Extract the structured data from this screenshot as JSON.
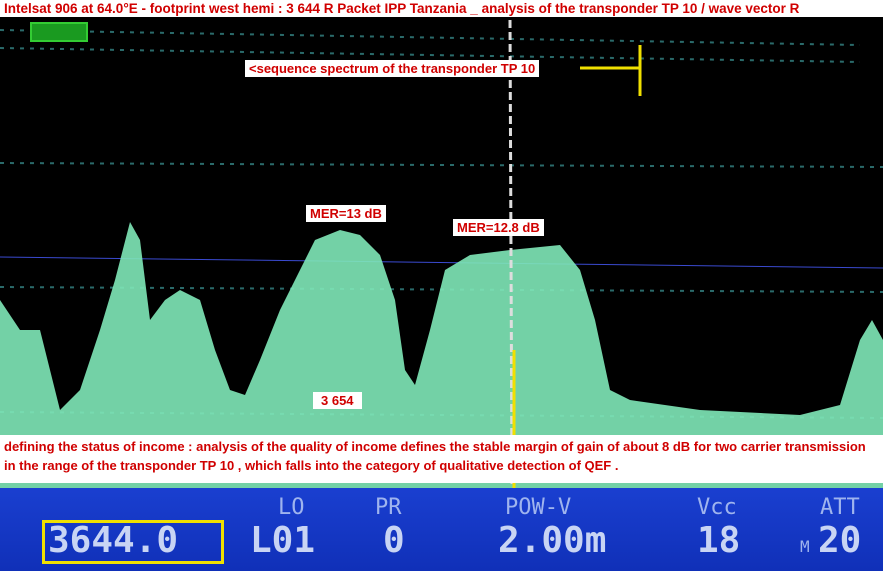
{
  "title": "Intelsat 906 at 64.0°E - footprint west hemi : 3 644 R Packet IPP Tanzania _ analysis of the transponder TP 10 / wave vector R",
  "annotations": {
    "sequence": "<sequence spectrum of the transponder TP 10",
    "mer1": "MER=13 dB",
    "mer2": "MER=12.8 dB",
    "frequency_marker": "3 654",
    "description": "defining the status of income : analysis of the quality of income defines the stable margin of gain of about 8 dB for two carrier transmission in the range of the transponder TP 10 , which falls into the category of qualitative detection of QEF ."
  },
  "status_bar": {
    "frequency": "3644.0",
    "lo_label": "LO",
    "lo_value": "L01",
    "pr_label": "PR",
    "pr_value": "0",
    "pow_label": "POW-V",
    "pow_value": "2.00m",
    "vcc_label": "Vcc",
    "vcc_value": "18",
    "att_label": "ATT",
    "att_prefix": "M",
    "att_value": "20"
  },
  "colors": {
    "spectrum": "#7fe8b8",
    "label_text": "#d00000",
    "status_bar": "#1a3fd0",
    "highlight": "#f0e000"
  }
}
